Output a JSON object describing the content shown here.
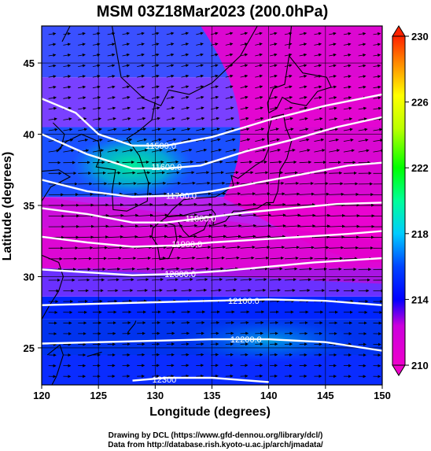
{
  "title": "MSM 03Z18Mar2023 (200.0hPa)",
  "credits": {
    "line1": "Drawing by DCL (https://www.gfd-dennou.org/library/dcl/)",
    "line2": "Data from http://database.rish.kyoto-u.ac.jp/arch/jmadata/"
  },
  "chart_data": {
    "type": "heatmap",
    "title": "MSM 03Z18Mar2023 (200.0hPa)",
    "xlabel": "Longitude (degrees)",
    "ylabel": "Latitude  (degrees)",
    "xlim": [
      120,
      150
    ],
    "ylim": [
      22.4,
      47.6
    ],
    "xticks": [
      120,
      125,
      130,
      135,
      140,
      145,
      150
    ],
    "yticks": [
      25,
      30,
      35,
      40,
      45
    ],
    "colorbar": {
      "ticks": [
        210,
        214,
        218,
        222,
        226,
        230
      ],
      "range": [
        210,
        230
      ]
    },
    "contours": [
      {
        "label": "11500.0",
        "label_lon": 130.5,
        "label_lat": 39.2
      },
      {
        "label": "11600.0",
        "label_lon": 131.0,
        "label_lat": 37.7
      },
      {
        "label": "11700.0",
        "label_lon": 132.3,
        "label_lat": 35.7
      },
      {
        "label": "11800.0",
        "label_lon": 134.0,
        "label_lat": 34.1
      },
      {
        "label": "11900.0",
        "label_lon": 132.8,
        "label_lat": 32.3
      },
      {
        "label": "12000.0",
        "label_lon": 132.2,
        "label_lat": 30.2
      },
      {
        "label": "12100.0",
        "label_lon": 137.8,
        "label_lat": 28.3
      },
      {
        "label": "12200.0",
        "label_lon": 138.0,
        "label_lat": 25.6
      },
      {
        "label": "12300",
        "label_lon": 130.8,
        "label_lat": 22.8
      }
    ]
  }
}
